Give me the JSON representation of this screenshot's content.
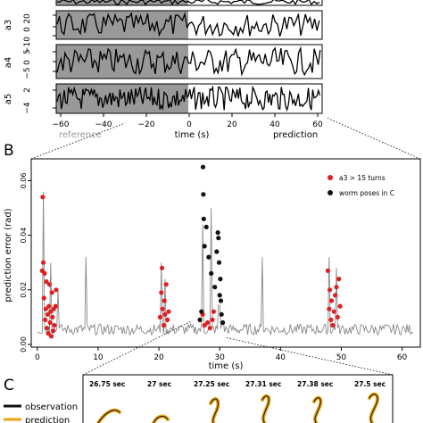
{
  "panel_labels": {
    "b": "B",
    "c": "C"
  },
  "panel_a": {
    "traces": [
      {
        "label": "",
        "ticks": []
      },
      {
        "label": "a3",
        "ticks": [
          "20",
          "0",
          "−10"
        ]
      },
      {
        "label": "a4",
        "ticks": [
          "5",
          "0",
          "−5"
        ]
      },
      {
        "label": "a5",
        "ticks": [
          "2",
          "−4"
        ]
      }
    ],
    "x_ticks": [
      "−60",
      "−40",
      "−20",
      "0",
      "20",
      "40",
      "60"
    ],
    "xlabel": "time (s)",
    "reference_label": "reference",
    "prediction_label": "prediction"
  },
  "chart_data": {
    "type": "line",
    "title": "",
    "xlabel": "time (s)",
    "ylabel": "prediction error (rad)",
    "xlim": [
      -1,
      63
    ],
    "ylim": [
      -0.001,
      0.068
    ],
    "x_ticks": [
      0,
      10,
      20,
      30,
      40,
      50,
      60
    ],
    "x_tick_labels": [
      "0",
      "10",
      "20",
      "30",
      "40",
      "50",
      "60"
    ],
    "y_ticks": [
      0.0,
      0.02,
      0.04,
      0.06
    ],
    "y_tick_labels": [
      "0.00",
      "0.02",
      "0.04",
      "0.06"
    ],
    "legend_position": "top-right",
    "legend": [
      "a3 > 15 turns",
      "worm poses in C"
    ],
    "series": [
      {
        "name": "a3 > 15 turns",
        "type": "scatter",
        "color": "#e02020",
        "x": [
          0.8,
          0.9,
          1.0,
          1.1,
          1.2,
          1.3,
          1.4,
          1.5,
          1.6,
          1.7,
          1.8,
          1.9,
          2.0,
          2.1,
          2.2,
          2.3,
          2.4,
          2.5,
          2.6,
          2.7,
          2.8,
          3.0,
          3.1,
          20.2,
          20.4,
          20.5,
          20.6,
          20.8,
          20.9,
          21.0,
          21.2,
          21.4,
          21.6,
          27.2,
          27.5,
          28.0,
          28.4,
          28.8,
          29.0,
          47.8,
          48.0,
          48.1,
          48.3,
          48.4,
          48.6,
          48.8,
          49.0,
          49.2,
          49.4,
          49.6,
          49.8
        ],
        "y": [
          0.027,
          0.054,
          0.03,
          0.017,
          0.026,
          0.009,
          0.013,
          0.023,
          0.006,
          0.011,
          0.004,
          0.014,
          0.022,
          0.008,
          0.012,
          0.003,
          0.019,
          0.01,
          0.005,
          0.013,
          0.007,
          0.014,
          0.02,
          0.01,
          0.019,
          0.028,
          0.013,
          0.007,
          0.016,
          0.011,
          0.022,
          0.009,
          0.012,
          0.011,
          0.007,
          0.008,
          0.006,
          0.009,
          0.012,
          0.027,
          0.013,
          0.02,
          0.009,
          0.016,
          0.007,
          0.012,
          0.018,
          0.021,
          0.01,
          0.024,
          0.014
        ]
      },
      {
        "name": "worm poses in C",
        "type": "scatter",
        "color": "#111111",
        "x": [
          26.75,
          27.0,
          27.25,
          27.31,
          27.38,
          27.5,
          27.8,
          28.2,
          28.6,
          29.2,
          29.5,
          29.7,
          29.8,
          29.9,
          30.0,
          30.1,
          30.2,
          30.3,
          30.5
        ],
        "y": [
          0.009,
          0.012,
          0.065,
          0.055,
          0.046,
          0.036,
          0.043,
          0.032,
          0.026,
          0.021,
          0.034,
          0.041,
          0.039,
          0.03,
          0.018,
          0.024,
          0.016,
          0.011,
          0.008
        ]
      }
    ]
  },
  "panel_c": {
    "legend": {
      "observation": "observation",
      "prediction": "prediction"
    },
    "colors": {
      "observation": "#111111",
      "prediction": "#e8a317"
    },
    "frames": [
      "26.75 sec",
      "27 sec",
      "27.25 sec",
      "27.31 sec",
      "27.38 sec",
      "27.5 sec"
    ]
  }
}
